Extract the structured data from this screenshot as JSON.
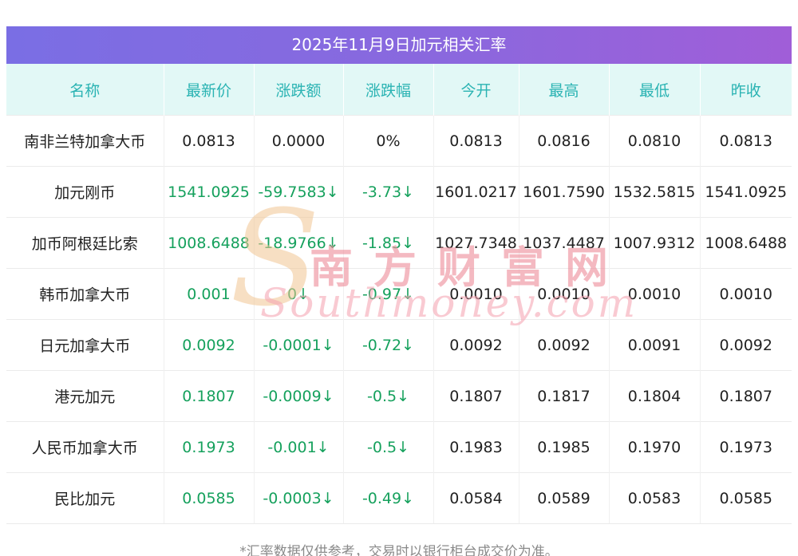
{
  "title": "2025年11月9日加元相关汇率",
  "columns": [
    "名称",
    "最新价",
    "涨跌额",
    "涨跌幅",
    "今开",
    "最高",
    "最低",
    "昨收"
  ],
  "rows": [
    {
      "name": "南非兰特加拿大币",
      "green_first3": false,
      "values": [
        "0.0813",
        "0.0000",
        "0%",
        "0.0813",
        "0.0816",
        "0.0810",
        "0.0813"
      ]
    },
    {
      "name": "加元刚币",
      "green_first3": true,
      "values": [
        "1541.0925",
        "-59.7583↓",
        "-3.73↓",
        "1601.0217",
        "1601.7590",
        "1532.5815",
        "1541.0925"
      ]
    },
    {
      "name": "加币阿根廷比索",
      "green_first3": true,
      "values": [
        "1008.6488",
        "-18.9766↓",
        "-1.85↓",
        "1027.7348",
        "1037.4487",
        "1007.9312",
        "1008.6488"
      ]
    },
    {
      "name": "韩币加拿大币",
      "green_first3": true,
      "values": [
        "0.001",
        "0↓",
        "-0.97↓",
        "0.0010",
        "0.0010",
        "0.0010",
        "0.0010"
      ]
    },
    {
      "name": "日元加拿大币",
      "green_first3": true,
      "values": [
        "0.0092",
        "-0.0001↓",
        "-0.72↓",
        "0.0092",
        "0.0092",
        "0.0091",
        "0.0092"
      ]
    },
    {
      "name": "港元加元",
      "green_first3": true,
      "values": [
        "0.1807",
        "-0.0009↓",
        "-0.5↓",
        "0.1807",
        "0.1817",
        "0.1804",
        "0.1807"
      ]
    },
    {
      "name": "人民币加拿大币",
      "green_first3": true,
      "values": [
        "0.1973",
        "-0.001↓",
        "-0.5↓",
        "0.1983",
        "0.1985",
        "0.1970",
        "0.1973"
      ]
    },
    {
      "name": "民比加元",
      "green_first3": true,
      "values": [
        "0.0585",
        "-0.0003↓",
        "-0.49↓",
        "0.0584",
        "0.0589",
        "0.0583",
        "0.0585"
      ]
    }
  ],
  "footer": "*汇率数据仅供参考，交易时以银行柜台成交价为准。",
  "watermark": {
    "logo": "S",
    "cn": "南方财富网",
    "en": "Southmoney.com"
  },
  "colors": {
    "header_gradient_start": "#7a6ee4",
    "header_gradient_end": "#a05ed8",
    "column_header_bg": "#e2f8f6",
    "column_header_text": "#2ab3b3",
    "value_green": "#16a15d",
    "value_black": "#222222",
    "footer_gray": "#8a8a8a",
    "watermark_pink": "#ee8e9b",
    "watermark_orange": "#f0c492"
  }
}
